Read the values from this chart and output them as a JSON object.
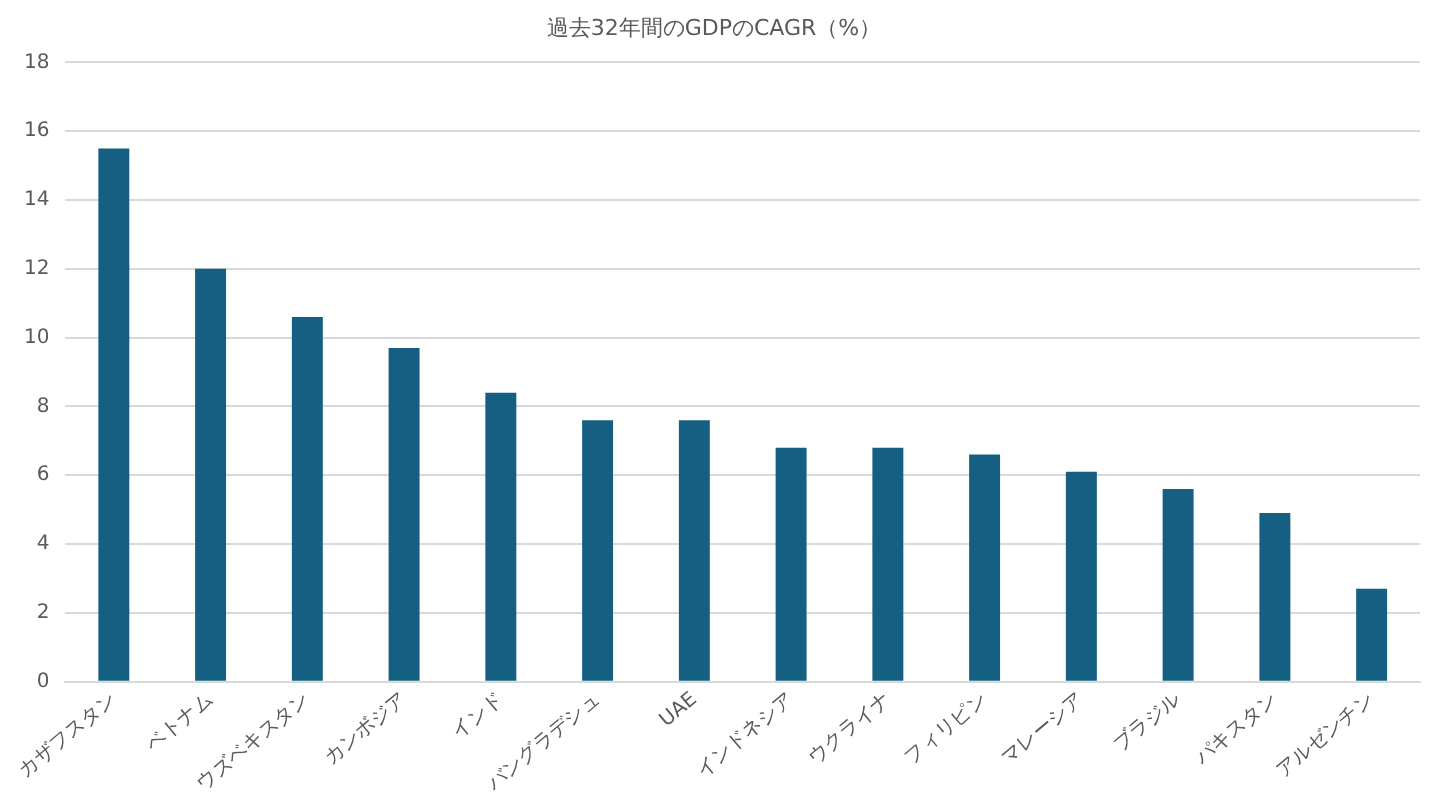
{
  "chart_data": {
    "type": "bar",
    "title": "過去32年間のGDPのCAGR（%）",
    "categories": [
      "カザフスタン",
      "ベトナム",
      "ウズベキスタン",
      "カンボジア",
      "インド",
      "バングラデシュ",
      "UAE",
      "インドネシア",
      "ウクライナ",
      "フィリピン",
      "マレーシア",
      "ブラジル",
      "パキスタン",
      "アルゼンチン"
    ],
    "values": [
      15.5,
      12.0,
      10.6,
      9.7,
      8.4,
      7.6,
      7.6,
      6.8,
      6.8,
      6.6,
      6.1,
      5.6,
      4.9,
      2.7
    ],
    "color": "#156082",
    "ylim": [
      0,
      18
    ],
    "yticks": [
      0,
      2,
      4,
      6,
      8,
      10,
      12,
      14,
      16,
      18
    ],
    "grid": "y",
    "legend": false
  }
}
